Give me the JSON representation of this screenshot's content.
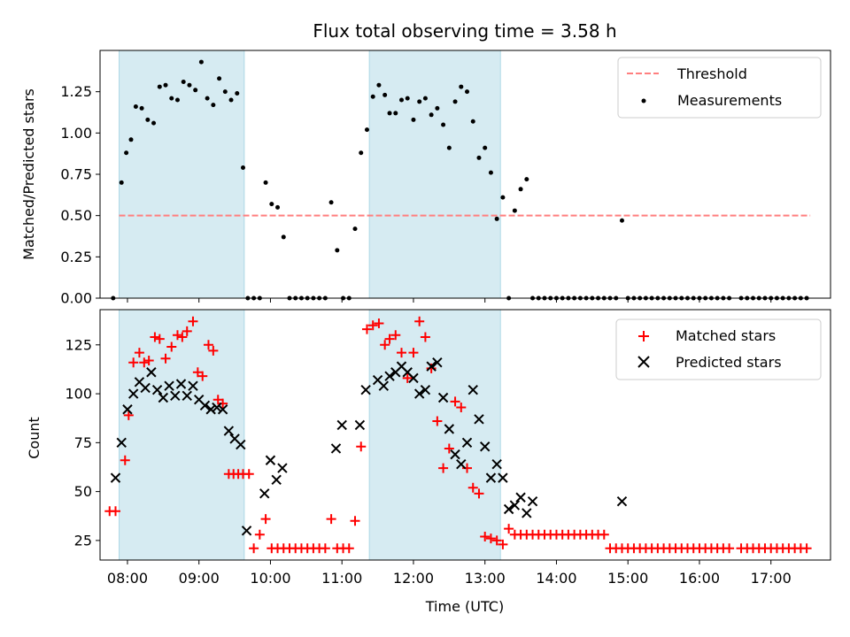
{
  "chart_data": [
    {
      "type": "scatter",
      "title": "Flux total observing time = 3.58 h",
      "xlabel": "",
      "ylabel": "Matched/Predicted stars",
      "xlim": [
        "07:37",
        "17:50"
      ],
      "ylim": [
        0,
        1.5
      ],
      "yticks": [
        "0.00",
        "0.25",
        "0.50",
        "0.75",
        "1.00",
        "1.25"
      ],
      "legend": "top-right",
      "grid": false,
      "shaded_intervals": [
        [
          "07:53",
          "09:38"
        ],
        [
          "11:23",
          "13:13"
        ]
      ],
      "threshold": {
        "name": "Threshold",
        "value": 0.5,
        "x_range": [
          "07:53",
          "17:33"
        ],
        "color": "#ff7f7f"
      },
      "series": [
        {
          "name": "Measurements",
          "color": "#000000",
          "marker": "dot",
          "x": [
            "07:48",
            "07:55",
            "07:59",
            "08:03",
            "08:07",
            "08:12",
            "08:17",
            "08:22",
            "08:27",
            "08:32",
            "08:37",
            "08:42",
            "08:47",
            "08:52",
            "08:57",
            "09:02",
            "09:07",
            "09:12",
            "09:17",
            "09:22",
            "09:27",
            "09:32",
            "09:37",
            "09:41",
            "09:46",
            "09:51",
            "09:56",
            "10:01",
            "10:06",
            "10:11",
            "10:16",
            "10:21",
            "10:26",
            "10:31",
            "10:36",
            "10:41",
            "10:46",
            "10:51",
            "10:56",
            "11:01",
            "11:06",
            "11:11",
            "11:16",
            "11:21",
            "11:26",
            "11:31",
            "11:36",
            "11:40",
            "11:45",
            "11:50",
            "11:55",
            "12:00",
            "12:05",
            "12:10",
            "12:15",
            "12:20",
            "12:25",
            "12:30",
            "12:35",
            "12:40",
            "12:45",
            "12:50",
            "12:55",
            "13:00",
            "13:05",
            "13:10",
            "13:15",
            "13:20",
            "13:25",
            "13:30",
            "13:35",
            "13:40",
            "13:45",
            "13:50",
            "13:55",
            "14:00",
            "14:05",
            "14:10",
            "14:15",
            "14:20",
            "14:25",
            "14:30",
            "14:35",
            "14:40",
            "14:45",
            "14:50",
            "14:55",
            "15:00",
            "15:05",
            "15:10",
            "15:15",
            "15:20",
            "15:25",
            "15:30",
            "15:35",
            "15:40",
            "15:45",
            "15:50",
            "15:55",
            "16:00",
            "16:05",
            "16:10",
            "16:15",
            "16:20",
            "16:25",
            "16:35",
            "16:40",
            "16:45",
            "16:50",
            "16:55",
            "17:00",
            "17:05",
            "17:10",
            "17:15",
            "17:20",
            "17:25",
            "17:30"
          ],
          "y": [
            0.0,
            0.7,
            0.88,
            0.96,
            1.16,
            1.15,
            1.08,
            1.06,
            1.28,
            1.29,
            1.21,
            1.2,
            1.31,
            1.29,
            1.26,
            1.43,
            1.21,
            1.17,
            1.33,
            1.25,
            1.2,
            1.24,
            0.79,
            0.0,
            0.0,
            0.0,
            0.7,
            0.57,
            0.55,
            0.37,
            0.0,
            0.0,
            0.0,
            0.0,
            0.0,
            0.0,
            0.0,
            0.58,
            0.29,
            0.0,
            0.0,
            0.42,
            0.88,
            1.02,
            1.22,
            1.29,
            1.23,
            1.12,
            1.12,
            1.2,
            1.21,
            1.08,
            1.19,
            1.21,
            1.11,
            1.15,
            1.05,
            0.91,
            1.19,
            1.28,
            1.25,
            1.07,
            0.85,
            0.91,
            0.76,
            0.48,
            0.61,
            0.0,
            0.53,
            0.66,
            0.72,
            0.0,
            0.0,
            0.0,
            0.0,
            0.0,
            0.0,
            0.0,
            0.0,
            0.0,
            0.0,
            0.0,
            0.0,
            0.0,
            0.0,
            0.0,
            0.47,
            0.0,
            0.0,
            0.0,
            0.0,
            0.0,
            0.0,
            0.0,
            0.0,
            0.0,
            0.0,
            0.0,
            0.0,
            0.0,
            0.0,
            0.0,
            0.0,
            0.0,
            0.0,
            0.0,
            0.0,
            0.0,
            0.0,
            0.0,
            0.0,
            0.0,
            0.0,
            0.0,
            0.0,
            0.0,
            0.0
          ]
        }
      ]
    },
    {
      "type": "scatter",
      "title": "",
      "xlabel": "Time (UTC)",
      "ylabel": "Count",
      "xlim": [
        "07:37",
        "17:50"
      ],
      "ylim": [
        15,
        143
      ],
      "yticks": [
        "25",
        "50",
        "75",
        "100",
        "125"
      ],
      "xticks": [
        "08:00",
        "09:00",
        "10:00",
        "11:00",
        "12:00",
        "13:00",
        "14:00",
        "15:00",
        "16:00",
        "17:00"
      ],
      "legend": "top-right",
      "grid": false,
      "shaded_intervals": [
        [
          "07:53",
          "09:38"
        ],
        [
          "11:23",
          "13:13"
        ]
      ],
      "series": [
        {
          "name": "Matched stars",
          "color": "#ff0000",
          "marker": "plus",
          "x": [
            "07:45",
            "07:50",
            "07:58",
            "08:01",
            "08:05",
            "08:10",
            "08:14",
            "08:18",
            "08:23",
            "08:27",
            "08:32",
            "08:37",
            "08:42",
            "08:46",
            "08:50",
            "08:55",
            "08:59",
            "09:03",
            "09:08",
            "09:12",
            "09:16",
            "09:20",
            "09:25",
            "09:29",
            "09:33",
            "09:37",
            "09:42",
            "09:46",
            "09:51",
            "09:56",
            "10:01",
            "10:06",
            "10:11",
            "10:16",
            "10:21",
            "10:26",
            "10:31",
            "10:36",
            "10:41",
            "10:46",
            "10:51",
            "10:56",
            "11:01",
            "11:06",
            "11:11",
            "11:16",
            "11:21",
            "11:26",
            "11:31",
            "11:36",
            "11:40",
            "11:45",
            "11:50",
            "11:55",
            "12:00",
            "12:05",
            "12:10",
            "12:15",
            "12:20",
            "12:25",
            "12:30",
            "12:35",
            "12:40",
            "12:45",
            "12:50",
            "12:55",
            "13:00",
            "13:05",
            "13:10",
            "13:15",
            "13:20",
            "13:25",
            "13:30",
            "13:35",
            "13:40",
            "13:45",
            "13:50",
            "13:55",
            "14:00",
            "14:05",
            "14:10",
            "14:15",
            "14:20",
            "14:25",
            "14:30",
            "14:35",
            "14:40",
            "14:45",
            "14:50",
            "14:55",
            "15:00",
            "15:05",
            "15:10",
            "15:15",
            "15:20",
            "15:25",
            "15:30",
            "15:35",
            "15:40",
            "15:45",
            "15:50",
            "15:55",
            "16:00",
            "16:05",
            "16:10",
            "16:15",
            "16:20",
            "16:25",
            "16:35",
            "16:40",
            "16:45",
            "16:50",
            "16:55",
            "17:00",
            "17:05",
            "17:10",
            "17:15",
            "17:20",
            "17:25",
            "17:30"
          ],
          "y": [
            40,
            40,
            66,
            89,
            116,
            121,
            116,
            117,
            129,
            128,
            118,
            124,
            130,
            129,
            132,
            137,
            111,
            109,
            125,
            122,
            97,
            95,
            59,
            59,
            59,
            59,
            59,
            21,
            28,
            36,
            21,
            21,
            21,
            21,
            21,
            21,
            21,
            21,
            21,
            21,
            36,
            21,
            21,
            21,
            35,
            73,
            133,
            135,
            136,
            125,
            128,
            130,
            121,
            108,
            121,
            137,
            129,
            113,
            86,
            62,
            72,
            96,
            93,
            62,
            52,
            49,
            27,
            26,
            25,
            23,
            31,
            28,
            28,
            28,
            28,
            28,
            28,
            28,
            28,
            28,
            28,
            28,
            28,
            28,
            28,
            28,
            28,
            21,
            21,
            21,
            21,
            21,
            21,
            21,
            21,
            21,
            21,
            21,
            21,
            21,
            21,
            21,
            21,
            21,
            21,
            21,
            21,
            21,
            21,
            21,
            21,
            21,
            21,
            21,
            21,
            21,
            21,
            21,
            21,
            21
          ]
        },
        {
          "name": "Predicted stars",
          "color": "#000000",
          "marker": "x",
          "x": [
            "07:50",
            "07:55",
            "08:00",
            "08:05",
            "08:10",
            "08:15",
            "08:20",
            "08:25",
            "08:30",
            "08:35",
            "08:40",
            "08:45",
            "08:50",
            "08:55",
            "09:00",
            "09:05",
            "09:10",
            "09:15",
            "09:20",
            "09:25",
            "09:30",
            "09:35",
            "09:40",
            "09:55",
            "10:00",
            "10:05",
            "10:10",
            "10:55",
            "11:00",
            "11:15",
            "11:20",
            "11:30",
            "11:35",
            "11:40",
            "11:45",
            "11:50",
            "11:55",
            "12:00",
            "12:05",
            "12:10",
            "12:15",
            "12:20",
            "12:25",
            "12:30",
            "12:35",
            "12:40",
            "12:45",
            "12:50",
            "12:55",
            "13:00",
            "13:05",
            "13:10",
            "13:15",
            "13:20",
            "13:25",
            "13:30",
            "13:35",
            "13:40",
            "14:55"
          ],
          "y": [
            57,
            75,
            92,
            100,
            106,
            103,
            111,
            102,
            98,
            104,
            99,
            105,
            99,
            104,
            97,
            94,
            92,
            93,
            92,
            81,
            77,
            74,
            30,
            49,
            66,
            56,
            62,
            72,
            84,
            84,
            102,
            107,
            104,
            109,
            111,
            114,
            111,
            108,
            100,
            102,
            114,
            116,
            98,
            82,
            69,
            64,
            75,
            102,
            87,
            73,
            57,
            64,
            57,
            41,
            43,
            47,
            39,
            45,
            45
          ]
        }
      ]
    }
  ]
}
